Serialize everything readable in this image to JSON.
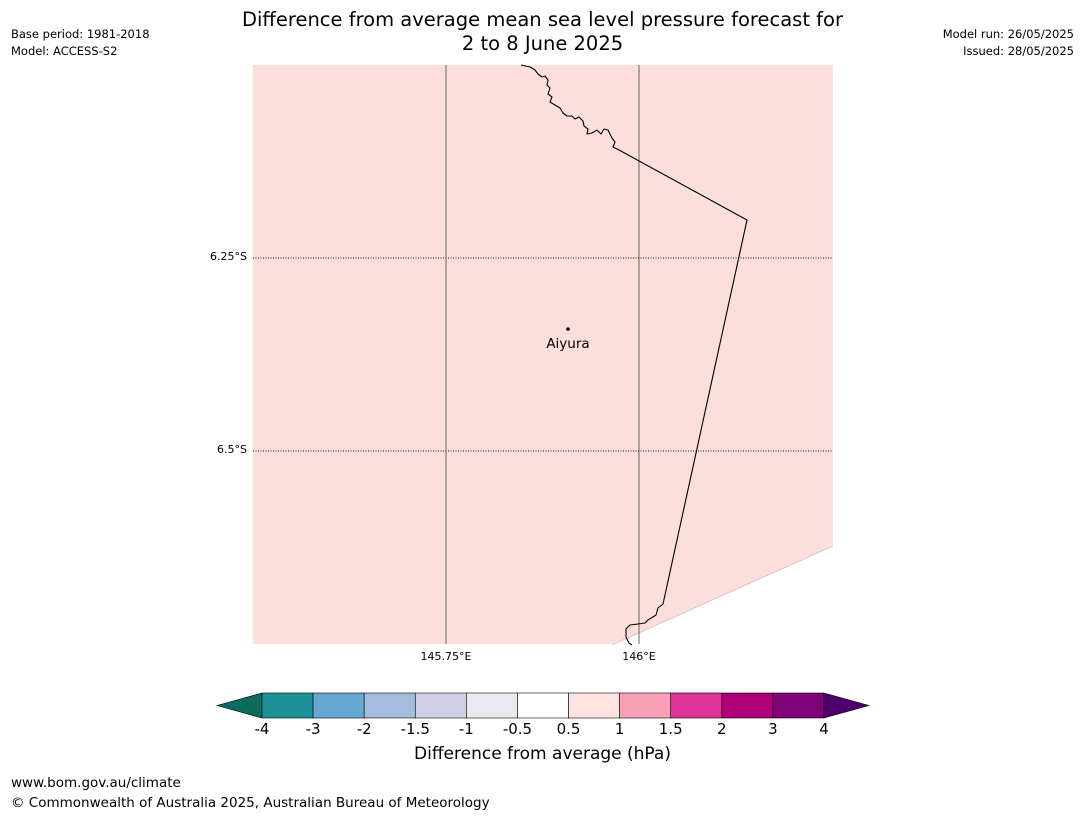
{
  "title": {
    "line1": "Difference from average mean sea level pressure forecast for",
    "line2": "2 to 8 June 2025"
  },
  "meta_left": {
    "base_period": "Base period: 1981-2018",
    "model": "Model: ACCESS-S2"
  },
  "meta_right": {
    "model_run": "Model run: 26/05/2025",
    "issued": "Issued: 28/05/2025"
  },
  "map": {
    "fill_color": "#fcdfdd",
    "lat_labels": [
      "6.25°S",
      "6.5°S"
    ],
    "lon_labels": [
      "145.75°E",
      "146°E"
    ],
    "place": {
      "name": "Aiyura"
    }
  },
  "colorbar": {
    "tick_labels": [
      "-4",
      "-3",
      "-2",
      "-1.5",
      "-1",
      "-0.5",
      "0.5",
      "1",
      "1.5",
      "2",
      "3",
      "4"
    ],
    "colors": [
      "#1b9096",
      "#66a8d2",
      "#a6bcdd",
      "#cfcfe5",
      "#ebe9ef",
      "#ffffff",
      "#fde2e1",
      "#f8a0b8",
      "#dc3596",
      "#ac0177",
      "#7e0278"
    ],
    "under_color": "#0a6b5e",
    "over_color": "#4d006b",
    "label": "Difference from average (hPa)"
  },
  "footer": {
    "url": "www.bom.gov.au/climate",
    "copyright": "© Commonwealth of Australia 2025, Australian Bureau of Meteorology"
  }
}
